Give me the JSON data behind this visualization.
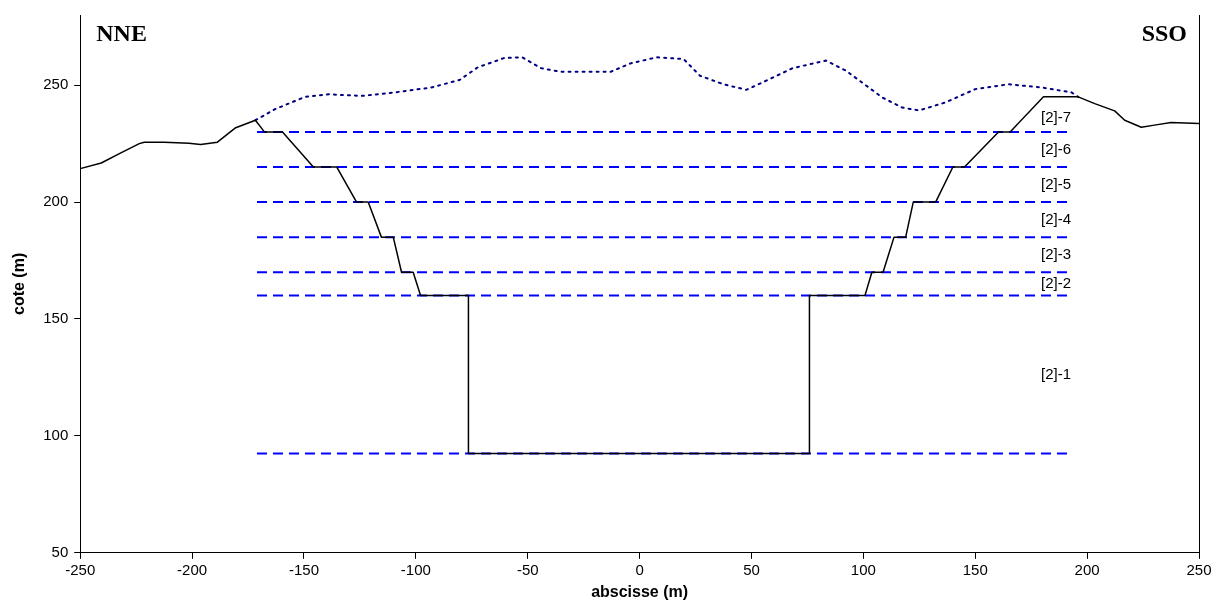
{
  "chart_data": {
    "type": "line",
    "xlabel": "abscisse (m)",
    "ylabel": "cote (m)",
    "xlim": [
      -250,
      250
    ],
    "xticks": [
      -250,
      -200,
      -150,
      -100,
      -50,
      0,
      50,
      100,
      150,
      200,
      250
    ],
    "ylim": [
      50,
      280
    ],
    "yticks": [
      50,
      100,
      150,
      200,
      250
    ],
    "grid": false,
    "legend": false,
    "marker": "none",
    "annotations": [
      "NNE",
      "SSO",
      "[2]-7",
      "[2]-6",
      "[2]-5",
      "[2]-4",
      "[2]-3",
      "[2]-2",
      "[2]-1"
    ],
    "series": [
      {
        "color": "#000000",
        "line_style": "solid",
        "x": [
          -250,
          -240.6,
          -232.5,
          -223.6,
          -221.4,
          -212.5,
          -201.4,
          -196.2,
          -188.7,
          -180.5,
          -171.7,
          -167.7,
          -159.6,
          -145.8,
          -135.4,
          -126.5,
          -121.3,
          -115.4,
          -110.1,
          -106.4,
          -101.2,
          -97.9,
          -76.5,
          -76.5,
          75.9,
          75.9,
          100.7,
          103.8,
          108.8,
          113.7,
          118.9,
          122.3,
          132.3,
          140,
          145.2,
          160.4,
          165.6,
          180.5,
          196,
          203.4,
          212.3,
          216.8,
          224.2,
          230.1,
          237.5,
          250
        ],
        "values": [
          214.3,
          216.7,
          220.7,
          225,
          225.6,
          225.6,
          225.2,
          224.6,
          225.6,
          231.8,
          235,
          230,
          230,
          215,
          215,
          200,
          200,
          185,
          185,
          170,
          170,
          160,
          160,
          92.5,
          92.5,
          160,
          160,
          170,
          170,
          185,
          185,
          200,
          200,
          215,
          215,
          230,
          230,
          245,
          245,
          242.1,
          239,
          235,
          232,
          232.9,
          234,
          233.6
        ]
      },
      {
        "color": "#000080",
        "line_style": "dotted",
        "x": [
          -171.7,
          -163,
          -149.5,
          -139,
          -124.3,
          -109.4,
          -93.1,
          -80.5,
          -72.4,
          -60.5,
          -52.4,
          -44.2,
          -35.3,
          -13,
          -4.1,
          7.7,
          19.6,
          27,
          37.4,
          47.7,
          56.6,
          68.5,
          83.3,
          92.2,
          108.5,
          117.4,
          124.9,
          136.7,
          150,
          164.9,
          179.7,
          193,
          196
        ],
        "values": [
          235,
          239.7,
          245,
          246.1,
          245.4,
          246.9,
          249,
          252.2,
          257.6,
          261.6,
          261.9,
          257.3,
          255.7,
          255.7,
          259.3,
          261.9,
          261.2,
          254,
          250.4,
          248,
          251.9,
          257.3,
          260.5,
          256.2,
          244.7,
          240.4,
          239.2,
          242.6,
          248.3,
          250.4,
          249,
          246.9,
          245
        ]
      },
      {
        "color": "#0000ff",
        "line_style": "dashed",
        "x": [
          -171,
          191
        ],
        "values": [
          230,
          230
        ]
      },
      {
        "color": "#0000ff",
        "line_style": "dashed",
        "x": [
          -171,
          191
        ],
        "values": [
          215,
          215
        ]
      },
      {
        "color": "#0000ff",
        "line_style": "dashed",
        "x": [
          -171,
          191
        ],
        "values": [
          200,
          200
        ]
      },
      {
        "color": "#0000ff",
        "line_style": "dashed",
        "x": [
          -171,
          191
        ],
        "values": [
          185,
          185
        ]
      },
      {
        "color": "#0000ff",
        "line_style": "dashed",
        "x": [
          -171,
          191
        ],
        "values": [
          170,
          170
        ]
      },
      {
        "color": "#0000ff",
        "line_style": "dashed",
        "x": [
          -171,
          191
        ],
        "values": [
          160,
          160
        ]
      },
      {
        "color": "#0000ff",
        "line_style": "dashed",
        "x": [
          -171,
          191
        ],
        "values": [
          92.5,
          92.5
        ]
      }
    ]
  }
}
